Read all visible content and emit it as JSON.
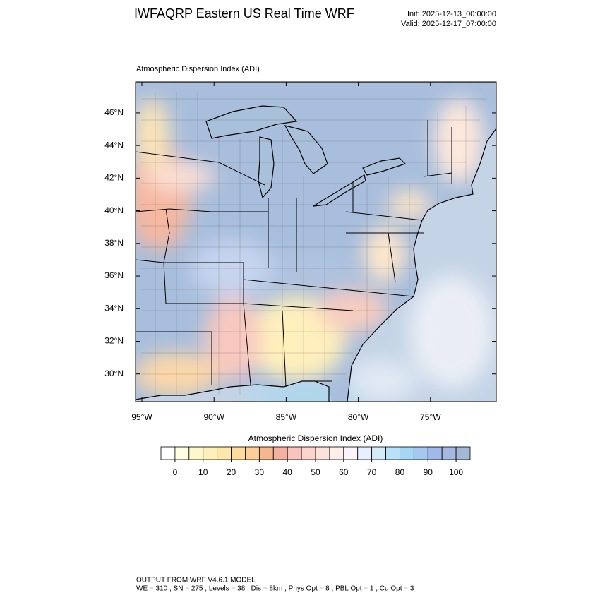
{
  "header": {
    "title": "IWFAQRP Eastern US Real Time WRF",
    "init": "Init: 2025-12-13_00:00:00",
    "valid": "Valid: 2025-12-17_07:00:00"
  },
  "map": {
    "subtitle": "Atmospheric Dispersion Index   (ADI)",
    "xlim": [
      -95.44,
      -70.44
    ],
    "ylim": [
      28.3,
      47.9
    ],
    "xticks": [
      {
        "value": -95,
        "label": "95°W"
      },
      {
        "value": -90,
        "label": "90°W"
      },
      {
        "value": -85,
        "label": "85°W"
      },
      {
        "value": -80,
        "label": "80°W"
      },
      {
        "value": -75,
        "label": "75°W"
      }
    ],
    "yticks": [
      {
        "value": 46,
        "label": "46°N"
      },
      {
        "value": 44,
        "label": "44°N"
      },
      {
        "value": 42,
        "label": "42°N"
      },
      {
        "value": 40,
        "label": "40°N"
      },
      {
        "value": 38,
        "label": "38°N"
      },
      {
        "value": 36,
        "label": "36°N"
      },
      {
        "value": 34,
        "label": "34°N"
      },
      {
        "value": 32,
        "label": "32°N"
      },
      {
        "value": 30,
        "label": "30°N"
      }
    ]
  },
  "colorbar": {
    "title": "Atmospheric Dispersion Index  (ADI)",
    "lim": [
      -5,
      105
    ],
    "ticks": [
      0,
      10,
      20,
      30,
      40,
      50,
      60,
      70,
      80,
      90,
      100
    ],
    "colors": [
      "#ffffff",
      "#fffde2",
      "#fff7cc",
      "#fff0bc",
      "#ffe7aa",
      "#fedd9c",
      "#fccf98",
      "#f8b68e",
      "#f6b0a0",
      "#f8c4bc",
      "#fad4cc",
      "#fce2dc",
      "#feeeea",
      "#faf4fa",
      "#e8f0ff",
      "#d4ecfa",
      "#b8e2f8",
      "#a6d6f4",
      "#a6c8f0",
      "#a0b8ea",
      "#a6b8e0",
      "#a2b8d6"
    ]
  },
  "footer": {
    "line1": "OUTPUT FROM WRF V4.6.1 MODEL",
    "line2": "WE = 310 ; SN = 275 ; Levels = 38 ; Dis = 8km ; Phys Opt = 8 ; PBL Opt = 1 ; Cu Opt = 3"
  }
}
